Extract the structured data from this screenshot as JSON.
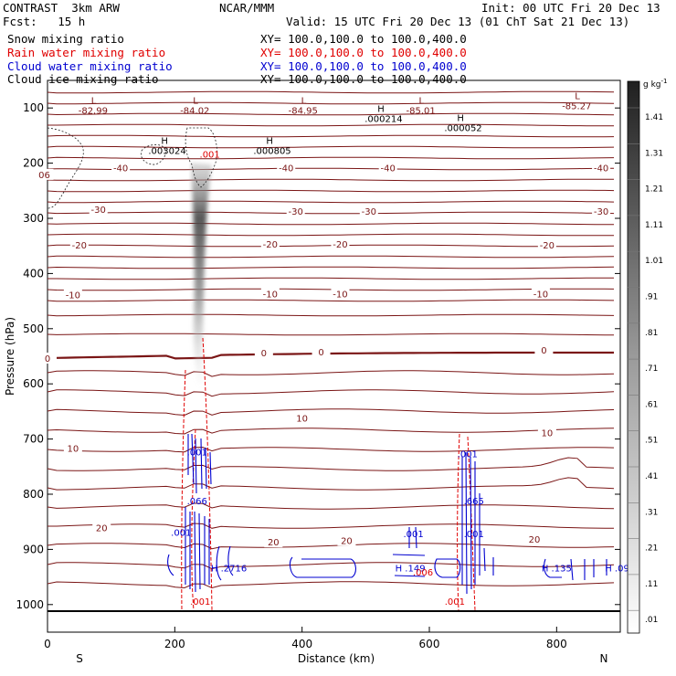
{
  "header": {
    "model": "CONTRAST  3km ARW",
    "center": "NCAR/MMM",
    "init": "Init: 00 UTC Fri 20 Dec 13",
    "fcst": "Fcst:   15 h",
    "valid": "Valid: 15 UTC Fri 20 Dec 13 (01 ChT Sat 21 Dec 13)",
    "fields": [
      {
        "label": "Snow mixing ratio",
        "xy": "XY= 100.0,100.0 to 100.0,400.0",
        "color": "#000000"
      },
      {
        "label": "Rain water mixing ratio",
        "xy": "XY= 100.0,100.0 to 100.0,400.0",
        "color": "#e00000"
      },
      {
        "label": "Cloud water mixing ratio",
        "xy": "XY= 100.0,100.0 to 100.0,400.0",
        "color": "#0000d0"
      },
      {
        "label": "Cloud ice mixing ratio",
        "xy": "XY= 100.0,100.0 to 100.0,400.0",
        "color": "#000000"
      }
    ]
  },
  "chart_data": {
    "type": "contour",
    "xlabel": "Distance (km)",
    "ylabel": "Pressure (hPa)",
    "xlim": [
      0,
      900
    ],
    "ylim": [
      1050,
      50
    ],
    "x_ticks": [
      0,
      200,
      400,
      600,
      800
    ],
    "y_ticks": [
      100,
      200,
      300,
      400,
      500,
      600,
      700,
      800,
      900,
      1000
    ],
    "left_end": "S",
    "right_end": "N",
    "colorbar": {
      "unit": "g kg",
      "unit_sup": "-1",
      "labels": [
        "1.41",
        "1.31",
        "1.21",
        "1.11",
        "1.01",
        ".91",
        ".81",
        ".71",
        ".61",
        ".51",
        ".41",
        ".31",
        ".21",
        ".11",
        ".01"
      ]
    },
    "temperature_labels": [
      {
        "x": 0,
        "p": 555,
        "text": "0"
      },
      {
        "x": 340,
        "p": 545,
        "text": "0"
      },
      {
        "x": 430,
        "p": 543,
        "text": "0"
      },
      {
        "x": 780,
        "p": 540,
        "text": "0"
      },
      {
        "x": 40,
        "p": 718,
        "text": "10"
      },
      {
        "x": 400,
        "p": 663,
        "text": "10"
      },
      {
        "x": 785,
        "p": 690,
        "text": "10"
      },
      {
        "x": 85,
        "p": 862,
        "text": "20"
      },
      {
        "x": 355,
        "p": 888,
        "text": "20"
      },
      {
        "x": 470,
        "p": 885,
        "text": "20"
      },
      {
        "x": 765,
        "p": 883,
        "text": "20"
      },
      {
        "x": 115,
        "p": 210,
        "text": "-40"
      },
      {
        "x": 375,
        "p": 210,
        "text": "-40"
      },
      {
        "x": 535,
        "p": 210,
        "text": "-40"
      },
      {
        "x": 870,
        "p": 210,
        "text": "-40"
      },
      {
        "x": 80,
        "p": 285,
        "text": "-30"
      },
      {
        "x": 390,
        "p": 288,
        "text": "-30"
      },
      {
        "x": 505,
        "p": 288,
        "text": "-30"
      },
      {
        "x": 870,
        "p": 288,
        "text": "-30"
      },
      {
        "x": 50,
        "p": 350,
        "text": "-20"
      },
      {
        "x": 350,
        "p": 348,
        "text": "-20"
      },
      {
        "x": 460,
        "p": 348,
        "text": "-20"
      },
      {
        "x": 785,
        "p": 350,
        "text": "-20"
      },
      {
        "x": 40,
        "p": 440,
        "text": "-10"
      },
      {
        "x": 350,
        "p": 438,
        "text": "-10"
      },
      {
        "x": 460,
        "p": 438,
        "text": "-10"
      },
      {
        "x": 775,
        "p": 438,
        "text": "-10"
      },
      {
        "x": -5,
        "p": 222,
        "text": "06"
      }
    ],
    "extrema": [
      {
        "kind": "L",
        "x": 80,
        "p": 92,
        "value": "-82.99"
      },
      {
        "kind": "L",
        "x": 240,
        "p": 92,
        "value": "-84.02"
      },
      {
        "kind": "L",
        "x": 410,
        "p": 92,
        "value": "-84.95"
      },
      {
        "kind": "L",
        "x": 595,
        "p": 92,
        "value": "-85.01"
      },
      {
        "kind": "L",
        "x": 840,
        "p": 84,
        "value": "-85.27"
      },
      {
        "kind": "H",
        "x": 530,
        "p": 107,
        "value": ".000214"
      },
      {
        "kind": "H",
        "x": 655,
        "p": 124,
        "value": ".000052"
      },
      {
        "kind": "H",
        "x": 190,
        "p": 165,
        "value": ".003024"
      },
      {
        "kind": "H",
        "x": 355,
        "p": 165,
        "value": ".000805"
      }
    ],
    "cloud_labels": [
      {
        "x": 285,
        "p": 940,
        "text": "H .2716"
      },
      {
        "x": 570,
        "p": 940,
        "text": "H .149"
      },
      {
        "x": 800,
        "p": 940,
        "text": "H .135"
      },
      {
        "x": 895,
        "p": 940,
        "text": "H .09"
      },
      {
        "x": 235,
        "p": 730,
        "text": ".001"
      },
      {
        "x": 660,
        "p": 733,
        "text": ".001"
      },
      {
        "x": 235,
        "p": 818,
        "text": ".066"
      },
      {
        "x": 670,
        "p": 818,
        "text": ".665"
      },
      {
        "x": 210,
        "p": 875,
        "text": ".001"
      },
      {
        "x": 575,
        "p": 878,
        "text": ".001"
      },
      {
        "x": 670,
        "p": 878,
        "text": ".001"
      }
    ],
    "rain_labels": [
      {
        "x": 590,
        "p": 947,
        "text": ".006"
      },
      {
        "x": 240,
        "p": 1000,
        "text": ".001"
      },
      {
        "x": 640,
        "p": 1000,
        "text": ".001"
      },
      {
        "x": 255,
        "p": 190,
        "text": ".001"
      }
    ]
  }
}
